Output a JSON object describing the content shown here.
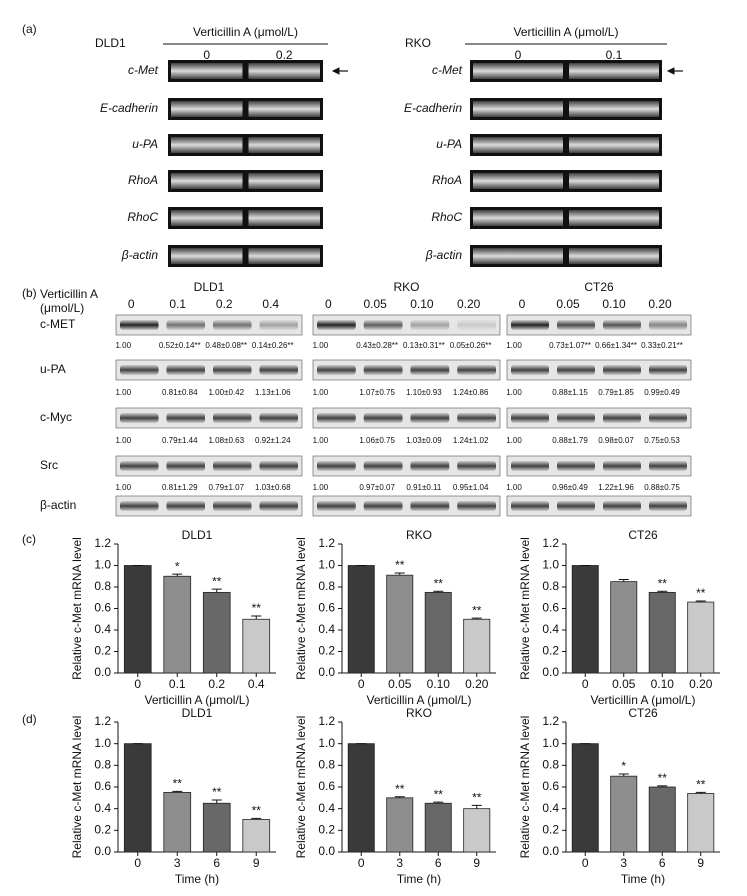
{
  "panel_labels": [
    "(a)",
    "(b)",
    "(c)",
    "(d)"
  ],
  "rt_pcr": [
    {
      "cell": "DLD1",
      "treatment": "Verticillin A (μmol/L)",
      "doses": [
        "0",
        "0.2"
      ],
      "genes": [
        "c-Met",
        "E-cadherin",
        "u-PA",
        "RhoA",
        "RhoC",
        "β-actin"
      ]
    },
    {
      "cell": "RKO",
      "treatment": "Verticillin A (μmol/L)",
      "doses": [
        "0",
        "0.1"
      ],
      "genes": [
        "c-Met",
        "E-cadherin",
        "u-PA",
        "RhoA",
        "RhoC",
        "β-actin"
      ]
    }
  ],
  "western": {
    "treatment": [
      "Verticillin A",
      "(μmol/L)"
    ],
    "proteins": [
      "c-MET",
      "u-PA",
      "c-Myc",
      "Src",
      "β-actin"
    ],
    "groups": [
      {
        "cell": "DLD1",
        "doses": [
          "0",
          "0.1",
          "0.2",
          "0.4"
        ],
        "ratios": [
          [
            "1.00",
            "0.52±0.14**",
            "0.48±0.08**",
            "0.14±0.26**"
          ],
          [
            "1.00",
            "0.81±0.84",
            "1.00±0.42",
            "1.13±1.06"
          ],
          [
            "1.00",
            "0.79±1.44",
            "1.08±0.63",
            "0.92±1.24"
          ],
          [
            "1.00",
            "0.81±1.29",
            "0.79±1.07",
            "1.03±0.68"
          ]
        ]
      },
      {
        "cell": "RKO",
        "doses": [
          "0",
          "0.05",
          "0.10",
          "0.20"
        ],
        "ratios": [
          [
            "1.00",
            "0.43±0.28**",
            "0.13±0.31**",
            "0.05±0.26**"
          ],
          [
            "1.00",
            "1.07±0.75",
            "1.10±0.93",
            "1.24±0.86"
          ],
          [
            "1.00",
            "1.06±0.75",
            "1.03±0.09",
            "1.24±1.02"
          ],
          [
            "1.00",
            "0.97±0.07",
            "0.91±0.11",
            "0.95±1.04"
          ]
        ]
      },
      {
        "cell": "CT26",
        "doses": [
          "0",
          "0.05",
          "0.10",
          "0.20"
        ],
        "ratios": [
          [
            "1.00",
            "0.73±1.07**",
            "0.66±1.34**",
            "0.33±0.21**"
          ],
          [
            "1.00",
            "0.88±1.15",
            "0.79±1.85",
            "0.99±0.49"
          ],
          [
            "1.00",
            "0.88±1.79",
            "0.98±0.07",
            "0.75±0.53"
          ],
          [
            "1.00",
            "0.96±0.49",
            "1.22±1.96",
            "0.88±0.75"
          ]
        ]
      }
    ]
  },
  "chart_data": [
    {
      "type": "bar",
      "title": "DLD1",
      "categories": [
        "0",
        "0.1",
        "0.2",
        "0.4"
      ],
      "values": [
        1.0,
        0.9,
        0.75,
        0.5
      ],
      "errors": [
        0,
        0.02,
        0.03,
        0.03
      ],
      "annotations": [
        null,
        "*",
        "**",
        "**"
      ],
      "colors": [
        "#3a3a3a",
        "#8e8e8e",
        "#686868",
        "#c9c9c9"
      ],
      "xlabel": "Verticillin A (μmol/L)",
      "ylabel": "Relative c-Met mRNA level",
      "ylim": [
        0,
        1.2
      ],
      "yticks": [
        {
          "value": 0,
          "label": "0.0"
        },
        {
          "value": 0.2,
          "label": "0.2"
        },
        {
          "value": 0.4,
          "label": "0.4"
        },
        {
          "value": 0.6,
          "label": "0.6"
        },
        {
          "value": 0.8,
          "label": "0.8"
        },
        {
          "value": 1.0,
          "label": "1.0"
        },
        {
          "value": 1.2,
          "label": "1.2"
        }
      ]
    },
    {
      "type": "bar",
      "title": "RKO",
      "categories": [
        "0",
        "0.05",
        "0.10",
        "0.20"
      ],
      "values": [
        1.0,
        0.91,
        0.75,
        0.5
      ],
      "errors": [
        0,
        0.02,
        0.01,
        0.01
      ],
      "annotations": [
        null,
        "**",
        "**",
        "**"
      ],
      "colors": [
        "#3a3a3a",
        "#8e8e8e",
        "#686868",
        "#c9c9c9"
      ],
      "xlabel": "Verticillin A (μmol/L)",
      "ylabel": "Relative c-Met mRNA level",
      "ylim": [
        0,
        1.2
      ],
      "yticks": [
        {
          "value": 0,
          "label": "0.0"
        },
        {
          "value": 0.2,
          "label": "0.2"
        },
        {
          "value": 0.4,
          "label": "0.4"
        },
        {
          "value": 0.6,
          "label": "0.6"
        },
        {
          "value": 0.8,
          "label": "0.8"
        },
        {
          "value": 1.0,
          "label": "1.0"
        },
        {
          "value": 1.2,
          "label": "1.2"
        }
      ]
    },
    {
      "type": "bar",
      "title": "CT26",
      "categories": [
        "0",
        "0.05",
        "0.10",
        "0.20"
      ],
      "values": [
        1.0,
        0.85,
        0.75,
        0.66
      ],
      "errors": [
        0,
        0.02,
        0.01,
        0.01
      ],
      "annotations": [
        null,
        null,
        "**",
        "**"
      ],
      "colors": [
        "#3a3a3a",
        "#8e8e8e",
        "#686868",
        "#c9c9c9"
      ],
      "xlabel": "Verticillin A (μmol/L)",
      "ylabel": "Relative c-Met mRNA level",
      "ylim": [
        0,
        1.2
      ],
      "yticks": [
        {
          "value": 0,
          "label": "0.0"
        },
        {
          "value": 0.2,
          "label": "0.2"
        },
        {
          "value": 0.4,
          "label": "0.4"
        },
        {
          "value": 0.6,
          "label": "0.6"
        },
        {
          "value": 0.8,
          "label": "0.8"
        },
        {
          "value": 1.0,
          "label": "1.0"
        },
        {
          "value": 1.2,
          "label": "1.2"
        }
      ]
    },
    {
      "type": "bar",
      "title": "DLD1",
      "categories": [
        "0",
        "3",
        "6",
        "9"
      ],
      "values": [
        1.0,
        0.55,
        0.45,
        0.3
      ],
      "errors": [
        0,
        0.01,
        0.03,
        0.01
      ],
      "annotations": [
        null,
        "**",
        "**",
        "**"
      ],
      "colors": [
        "#3a3a3a",
        "#8e8e8e",
        "#686868",
        "#c9c9c9"
      ],
      "xlabel": "Time (h)",
      "ylabel": "Relative c-Met mRNA level",
      "ylim": [
        0,
        1.2
      ],
      "yticks": [
        {
          "value": 0,
          "label": "0.0"
        },
        {
          "value": 0.2,
          "label": "0.2"
        },
        {
          "value": 0.4,
          "label": "0.4"
        },
        {
          "value": 0.6,
          "label": "0.6"
        },
        {
          "value": 0.8,
          "label": "0.8"
        },
        {
          "value": 1.0,
          "label": "1.0"
        },
        {
          "value": 1.2,
          "label": "1.2"
        }
      ]
    },
    {
      "type": "bar",
      "title": "RKO",
      "categories": [
        "0",
        "3",
        "6",
        "9"
      ],
      "values": [
        1.0,
        0.5,
        0.45,
        0.4
      ],
      "errors": [
        0,
        0.01,
        0.01,
        0.03
      ],
      "annotations": [
        null,
        "**",
        "**",
        "**"
      ],
      "colors": [
        "#3a3a3a",
        "#8e8e8e",
        "#686868",
        "#c9c9c9"
      ],
      "xlabel": "Time (h)",
      "ylabel": "Relative c-Met mRNA level",
      "ylim": [
        0,
        1.2
      ],
      "yticks": [
        {
          "value": 0,
          "label": "0.0"
        },
        {
          "value": 0.2,
          "label": "0.2"
        },
        {
          "value": 0.4,
          "label": "0.4"
        },
        {
          "value": 0.6,
          "label": "0.6"
        },
        {
          "value": 0.8,
          "label": "0.8"
        },
        {
          "value": 1.0,
          "label": "1.0"
        },
        {
          "value": 1.2,
          "label": "1.2"
        }
      ]
    },
    {
      "type": "bar",
      "title": "CT26",
      "categories": [
        "0",
        "3",
        "6",
        "9"
      ],
      "values": [
        1.0,
        0.7,
        0.6,
        0.54
      ],
      "errors": [
        0,
        0.02,
        0.01,
        0.01
      ],
      "annotations": [
        null,
        "*",
        "**",
        "**"
      ],
      "colors": [
        "#3a3a3a",
        "#8e8e8e",
        "#686868",
        "#c9c9c9"
      ],
      "xlabel": "Time (h)",
      "ylabel": "Relative c-Met mRNA level",
      "ylim": [
        0,
        1.2
      ],
      "yticks": [
        {
          "value": 0,
          "label": "0.0"
        },
        {
          "value": 0.2,
          "label": "0.2"
        },
        {
          "value": 0.4,
          "label": "0.4"
        },
        {
          "value": 0.6,
          "label": "0.6"
        },
        {
          "value": 0.8,
          "label": "0.8"
        },
        {
          "value": 1.0,
          "label": "1.0"
        },
        {
          "value": 1.2,
          "label": "1.2"
        }
      ]
    }
  ]
}
